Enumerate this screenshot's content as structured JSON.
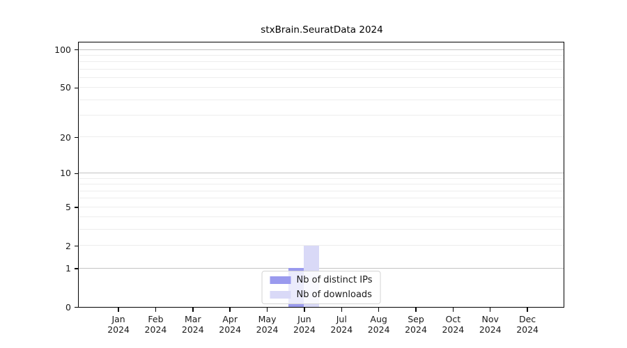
{
  "figure": {
    "title": "stxBrain.SeuratData 2024"
  },
  "chart_data": {
    "type": "bar",
    "title": "stxBrain.SeuratData 2024",
    "categories": [
      "Jan",
      "Feb",
      "Mar",
      "Apr",
      "May",
      "Jun",
      "Jul",
      "Aug",
      "Sep",
      "Oct",
      "Nov",
      "Dec"
    ],
    "category_year": "2024",
    "series": [
      {
        "name": "Nb of distinct IPs",
        "color": "#9a9aee",
        "values": [
          0,
          0,
          0,
          0,
          0,
          1,
          0,
          0,
          0,
          0,
          0,
          0
        ]
      },
      {
        "name": "Nb of downloads",
        "color": "#d9d9f7",
        "values": [
          0,
          0,
          0,
          0,
          0,
          2,
          0,
          0,
          0,
          0,
          0,
          0
        ]
      }
    ],
    "y_axis": {
      "scale": "log10(1+v)",
      "tick_values": [
        0,
        1,
        2,
        5,
        10,
        20,
        50,
        100
      ],
      "major_gridlines": [
        1,
        10,
        100
      ],
      "minor_gridlines": [
        2,
        3,
        4,
        5,
        6,
        7,
        8,
        9,
        20,
        30,
        40,
        50,
        60,
        70,
        80,
        90
      ],
      "ylim": [
        0,
        113
      ]
    },
    "xlabel": "",
    "ylabel": "",
    "grid": true,
    "legend_position": "lower center"
  },
  "colors": {
    "axis": "#000000",
    "major_grid": "#c3c3c3",
    "minor_grid": "#ededed",
    "background": "#ffffff",
    "legend_border": "#d4d4d4",
    "text": "#1a1a1a"
  }
}
